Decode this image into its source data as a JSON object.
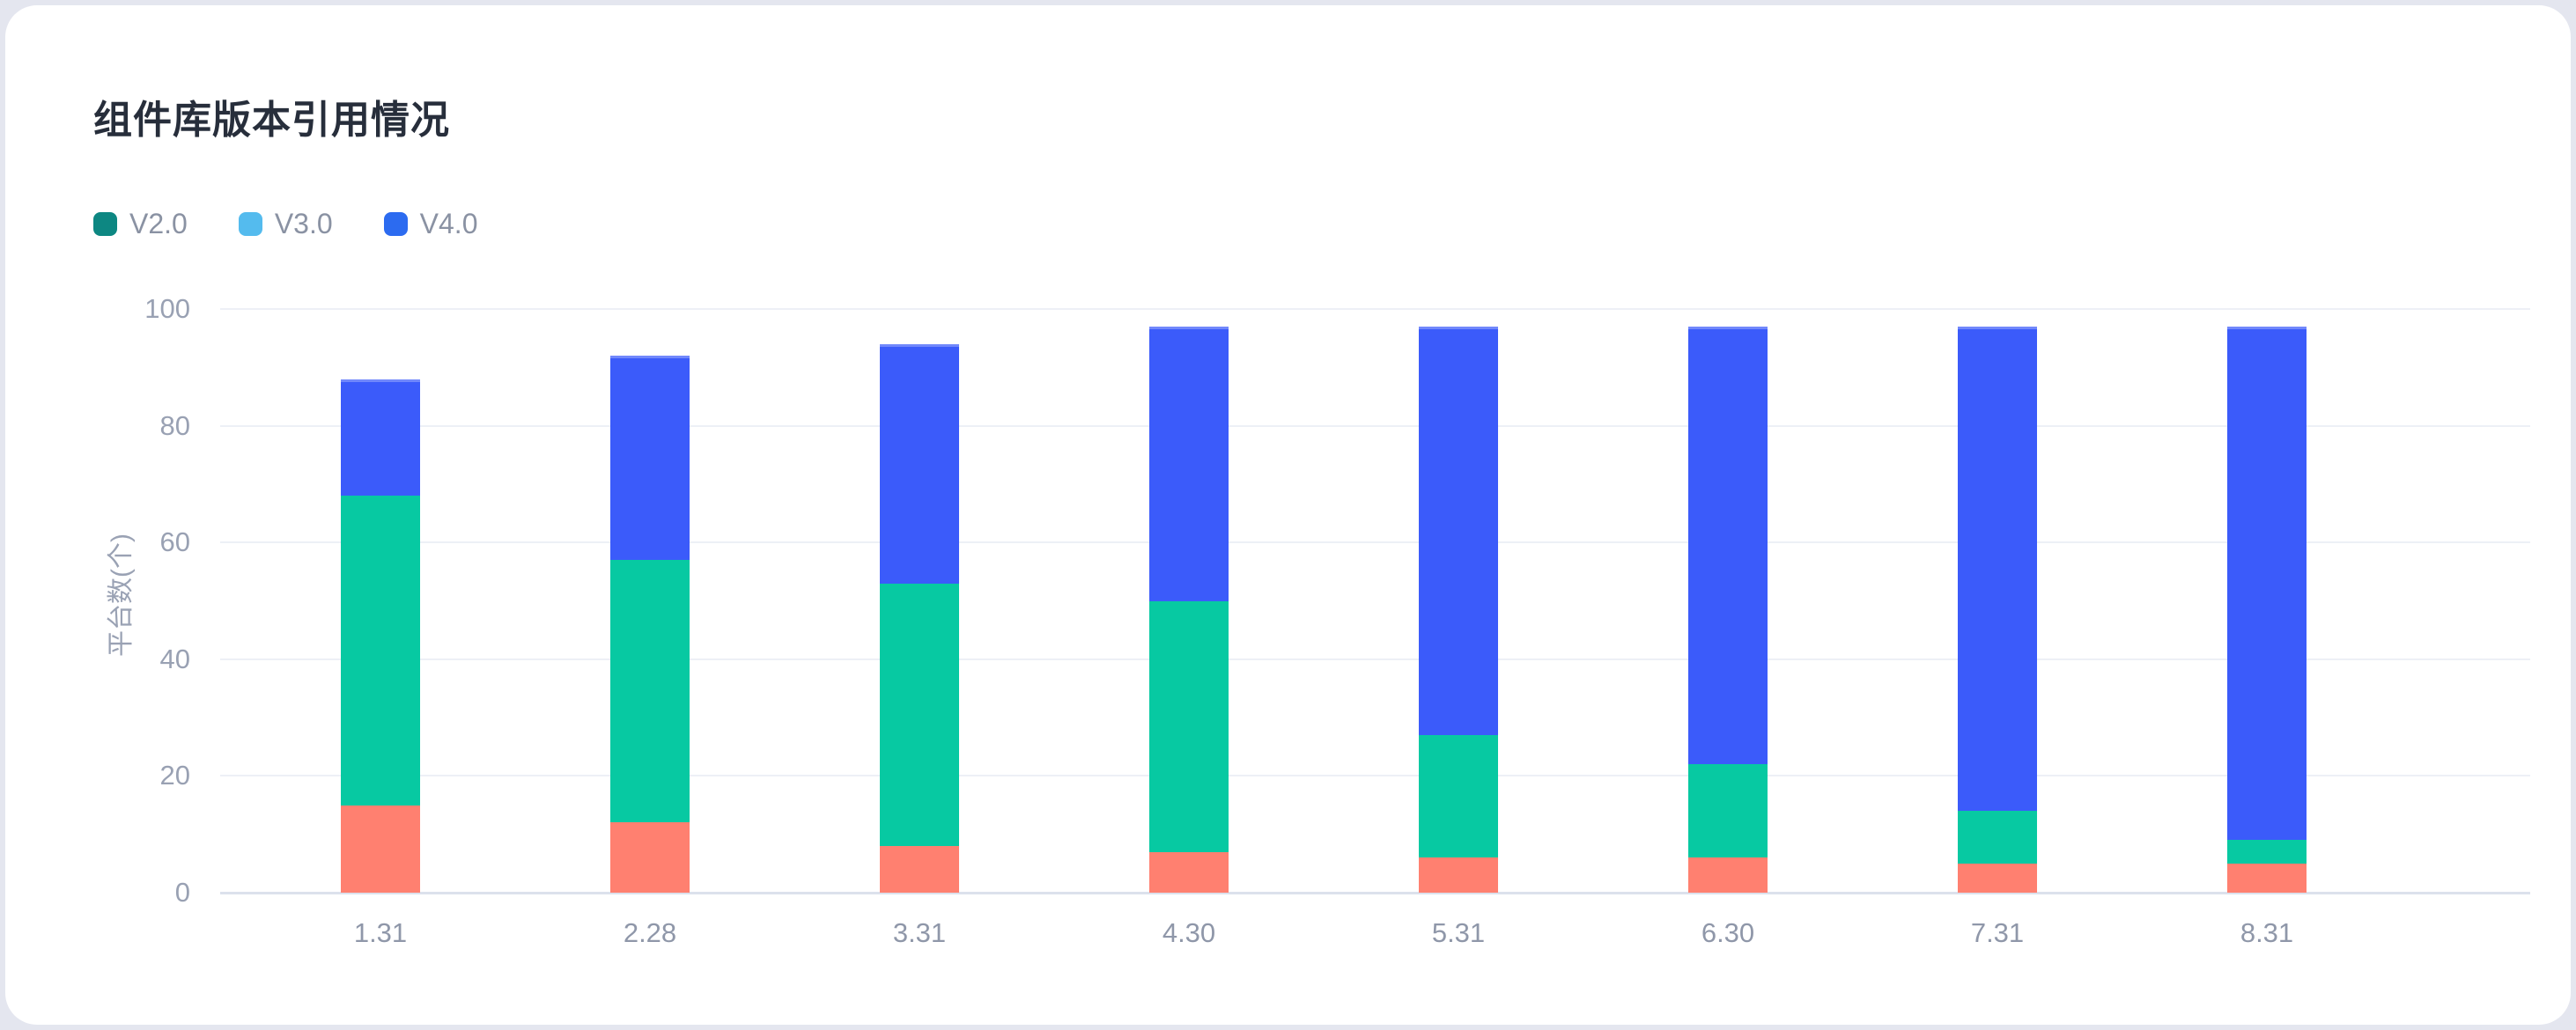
{
  "chart_data": {
    "type": "bar",
    "stacked": true,
    "title": "组件库版本引用情况",
    "ylabel": "平台数(个)",
    "categories": [
      "1.31",
      "2.28",
      "3.31",
      "4.30",
      "5.31",
      "6.30",
      "7.31",
      "8.31"
    ],
    "y_ticks": [
      0,
      20,
      40,
      60,
      80,
      100
    ],
    "ylim": [
      0,
      100
    ],
    "grid": true,
    "legend_position": "top-left",
    "legend": [
      {
        "label": "V2.0",
        "color": "#0D8782"
      },
      {
        "label": "V3.0",
        "color": "#54BBEE"
      },
      {
        "label": "V4.0",
        "color": "#2C6BF0"
      }
    ],
    "series": [
      {
        "name": "bottom-segment",
        "color": "#FF8070",
        "values": [
          15,
          12,
          8,
          7,
          6,
          6,
          5,
          5
        ]
      },
      {
        "name": "middle-segment",
        "color": "#07C9A2",
        "values": [
          53,
          45,
          45,
          43,
          21,
          16,
          9,
          4
        ]
      },
      {
        "name": "top-segment",
        "color": "#3B5BFA",
        "values": [
          20,
          35,
          41,
          47,
          70,
          75,
          83,
          88
        ]
      }
    ],
    "stack_totals": [
      88,
      92,
      94,
      97,
      97,
      97,
      97,
      97
    ],
    "colors": {
      "card_background": "#FFFFFF",
      "page_background": "#E4E6EF",
      "gridline": "#EDF0F6",
      "axis_line": "#DCE1EC",
      "title_text": "#272E3B",
      "axis_text": "#99A1B3"
    }
  }
}
